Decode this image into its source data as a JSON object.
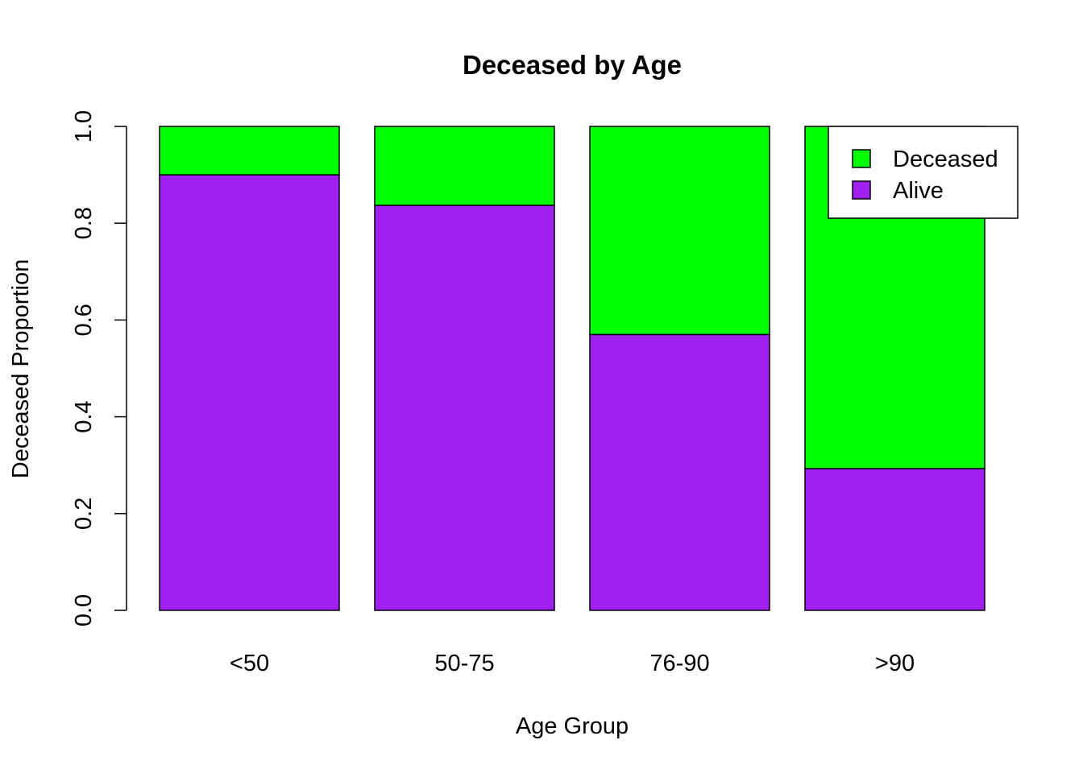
{
  "chart_data": {
    "type": "bar",
    "stacked": true,
    "title": "Deceased by Age",
    "xlabel": "Age Group",
    "ylabel": "Deceased Proportion",
    "ylim": [
      0,
      1
    ],
    "yticks": [
      "0.0",
      "0.2",
      "0.4",
      "0.6",
      "0.8",
      "1.0"
    ],
    "categories": [
      "<50",
      "50-75",
      "76-90",
      ">90"
    ],
    "series": [
      {
        "name": "Alive",
        "color": "#A020F0",
        "values": [
          0.9,
          0.837,
          0.57,
          0.293
        ]
      },
      {
        "name": "Deceased",
        "color": "#00FF00",
        "values": [
          0.1,
          0.163,
          0.43,
          0.707
        ]
      }
    ],
    "legend": {
      "position": "top-right",
      "entries": [
        "Deceased",
        "Alive"
      ]
    },
    "grid": false
  }
}
